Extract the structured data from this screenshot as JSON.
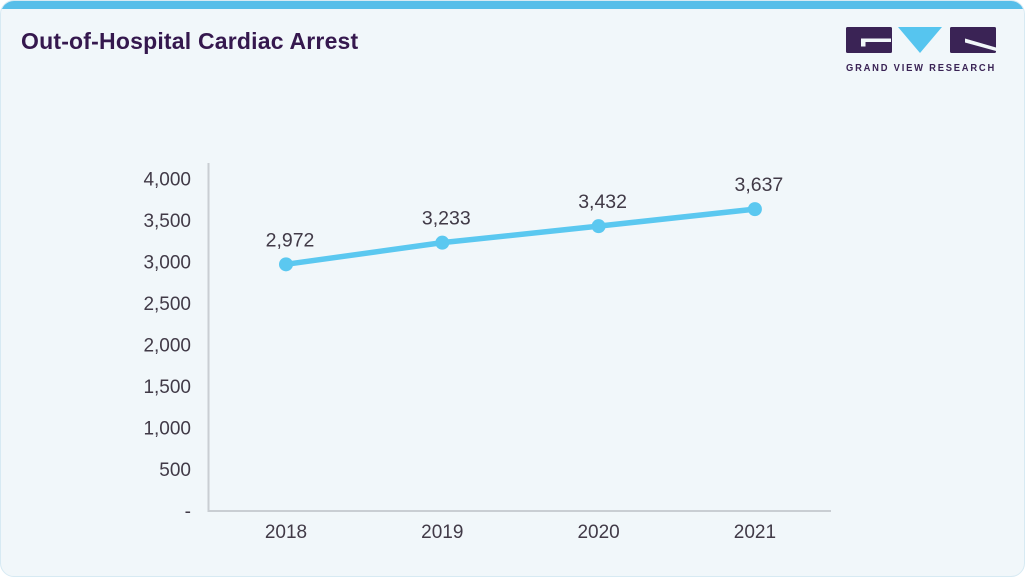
{
  "card": {
    "title": "Out-of-Hospital Cardiac Arrest",
    "accent_bar_color": "#57BEE9",
    "background_color": "#F1F7FA",
    "title_color": "#35184E"
  },
  "logo": {
    "text": "GRAND VIEW RESEARCH",
    "purple": "#3A2355",
    "blue": "#56C5EF"
  },
  "chart_data": {
    "type": "line",
    "title": "Out-of-Hospital Cardiac Arrest",
    "categories": [
      "2018",
      "2019",
      "2020",
      "2021"
    ],
    "series": [
      {
        "name": "Out-of-Hospital Cardiac Arrest",
        "values": [
          2972,
          3233,
          3432,
          3637
        ]
      }
    ],
    "data_labels": [
      "2,972",
      "3,233",
      "3,432",
      "3,637"
    ],
    "y_ticks": [
      "4,000",
      "3,500",
      "3,000",
      "2,500",
      "2,000",
      "1,500",
      "1,000",
      "500",
      "-"
    ],
    "y_tick_values": [
      4000,
      3500,
      3000,
      2500,
      2000,
      1500,
      1000,
      500,
      0
    ],
    "ylim": [
      0,
      4000
    ],
    "xlabel": "",
    "ylabel": "",
    "grid": false,
    "legend": false,
    "line_color": "#5BC8F0",
    "marker": "circle",
    "axis_color": "#C9CED3",
    "tick_text_color": "#413A47"
  }
}
